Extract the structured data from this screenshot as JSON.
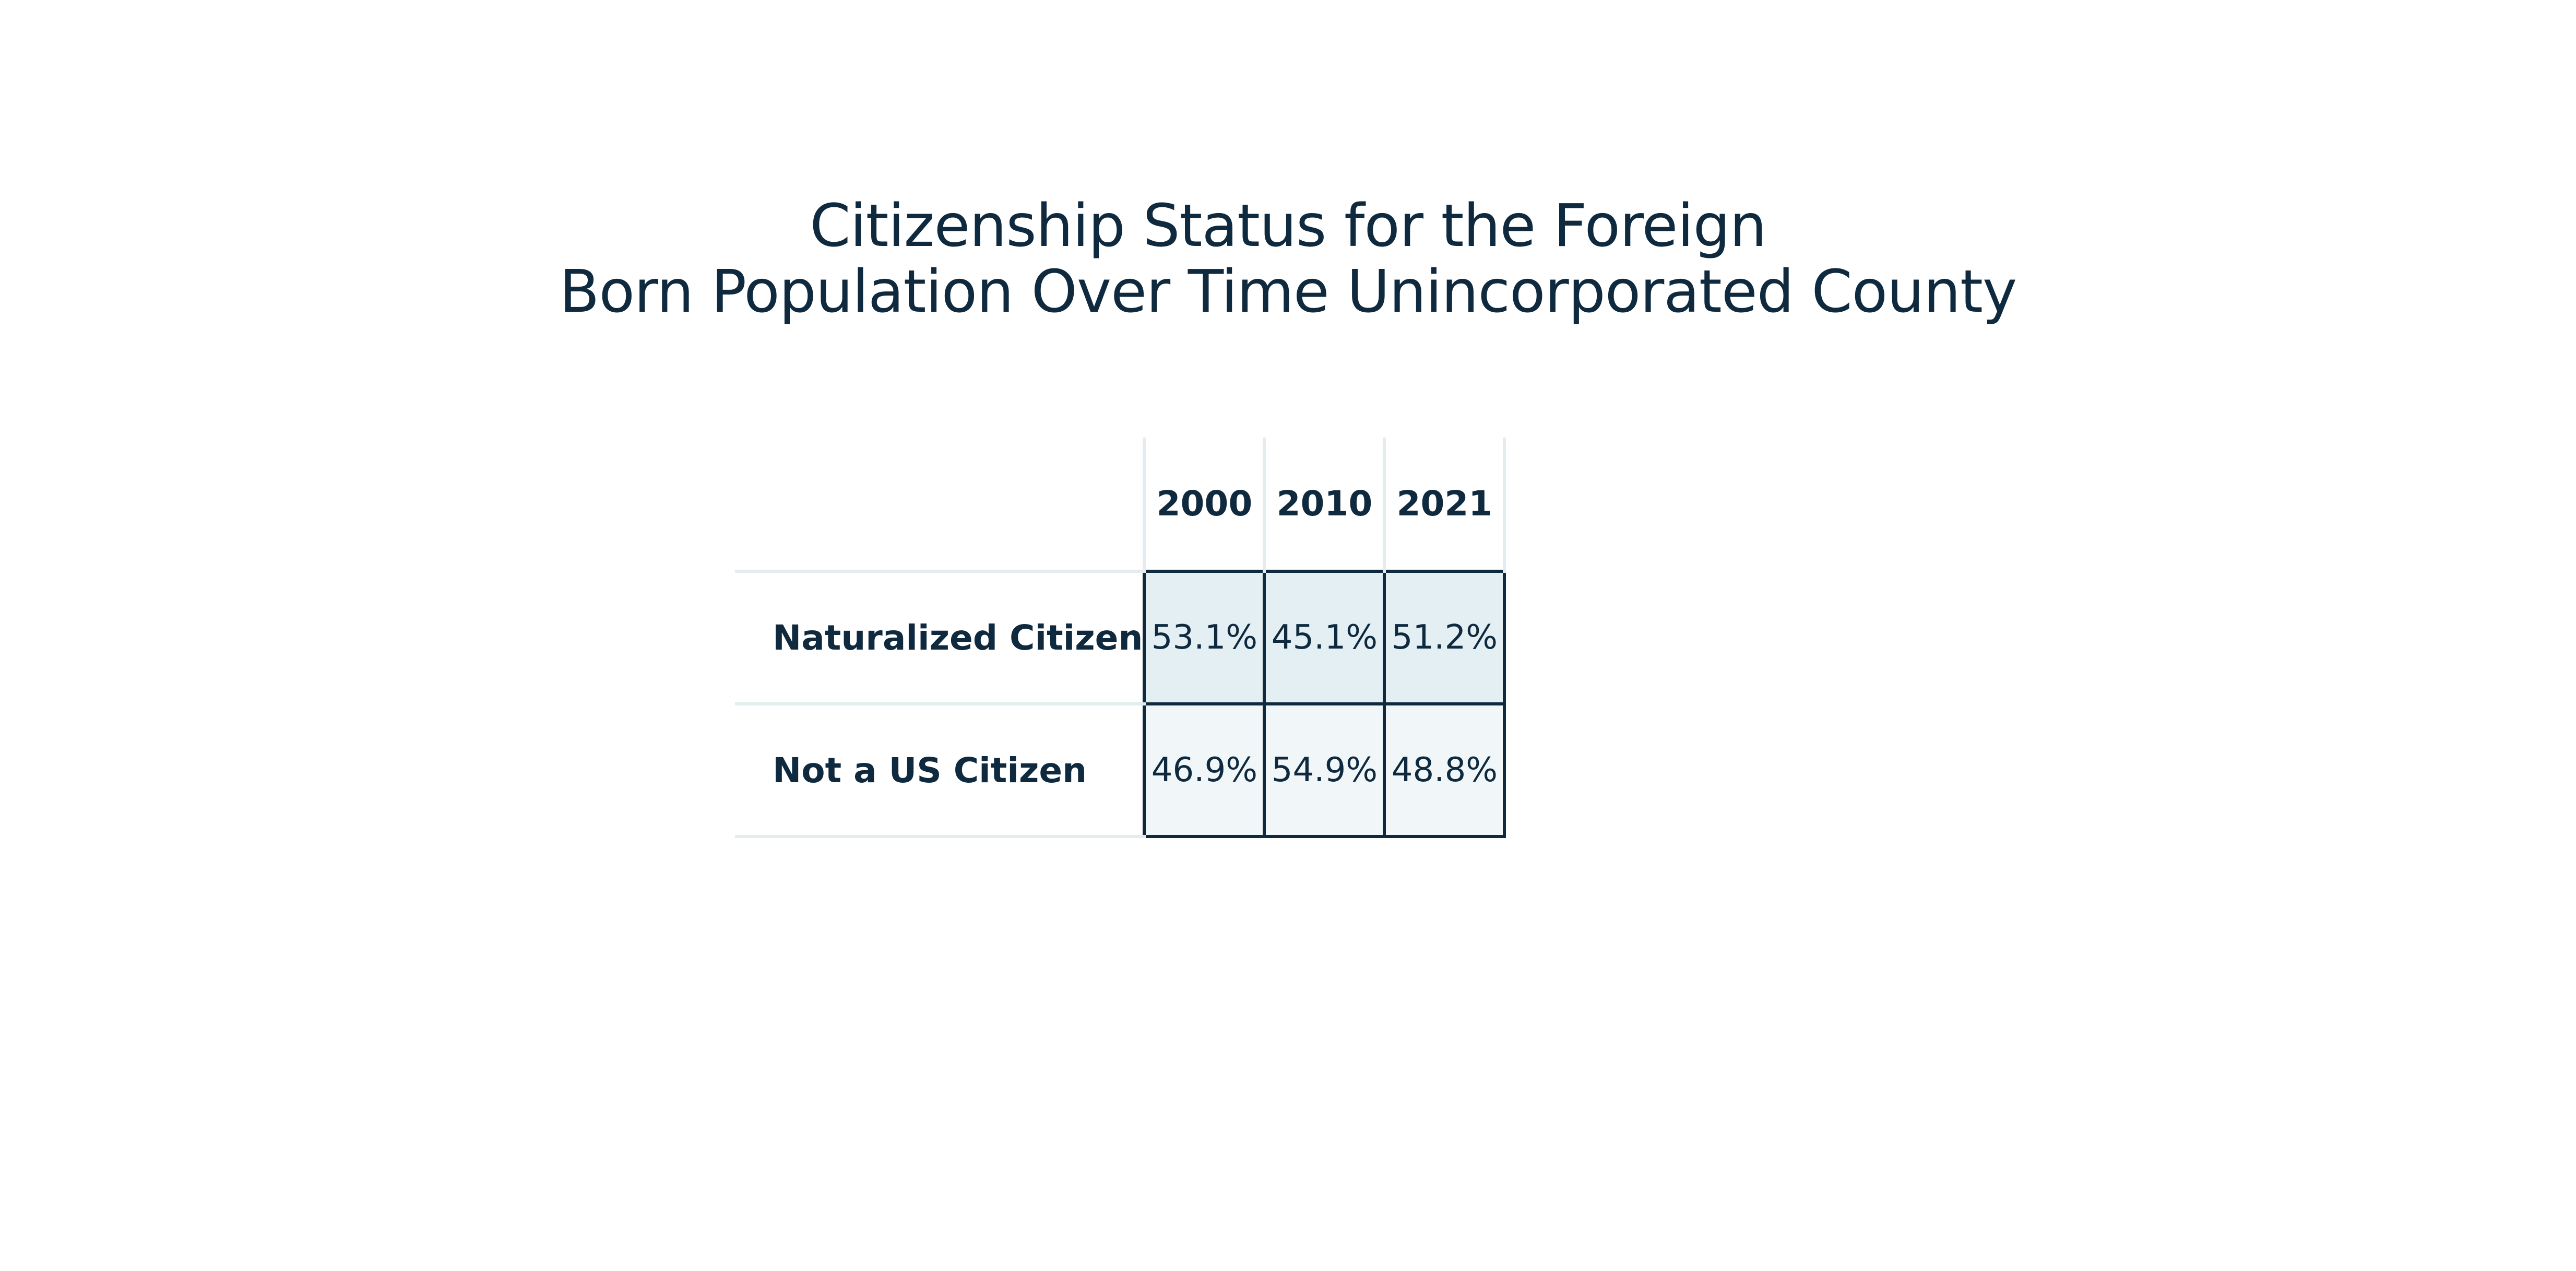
{
  "chart_data": {
    "type": "table",
    "title": "Citizenship Status for the Foreign Born Population Over Time Unincorporated County",
    "title_lines": [
      "Citizenship Status for the Foreign",
      "Born Population Over Time Unincorporated County"
    ],
    "columns": [
      "2000",
      "2010",
      "2021"
    ],
    "rows": [
      {
        "label": "Naturalized Citizen",
        "values": [
          "53.1%",
          "45.1%",
          "51.2%"
        ]
      },
      {
        "label": "Not a US Citizen",
        "values": [
          "46.9%",
          "54.9%",
          "48.8%"
        ]
      }
    ],
    "colors": {
      "text": "#0f2a3f",
      "row_fill_1": "#e3eff3",
      "row_fill_2": "#f1f7f8",
      "grid_light": "#e4ecef",
      "cell_border": "#0f2a3f"
    }
  }
}
